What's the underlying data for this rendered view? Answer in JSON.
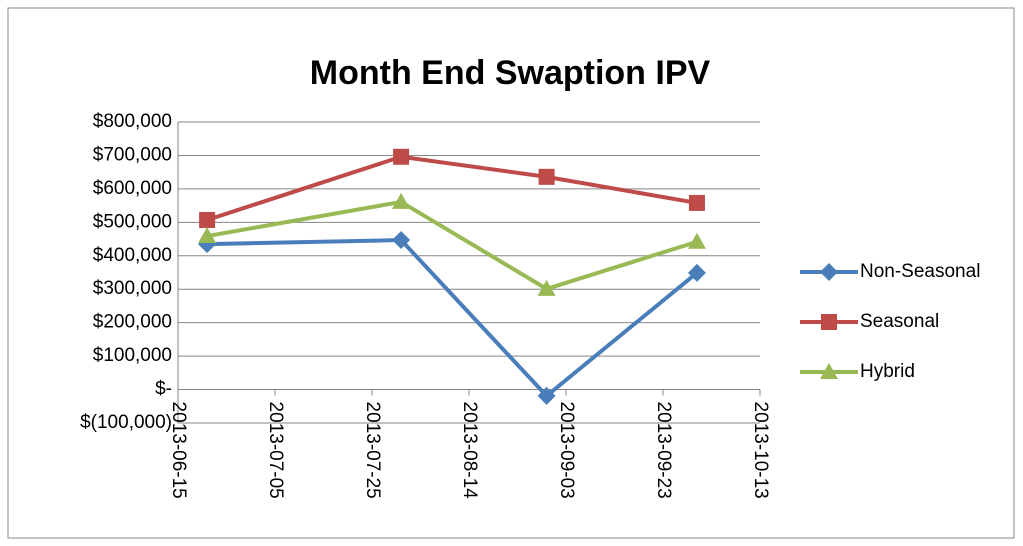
{
  "chart_data": {
    "type": "line",
    "title": "Month End Swaption IPV",
    "x": [
      "2013-06-21",
      "2013-07-31",
      "2013-08-30",
      "2013-09-30"
    ],
    "series": [
      {
        "name": "Non-Seasonal",
        "color": "#4a7ebb",
        "marker": "diamond",
        "values": [
          435000,
          447000,
          -19000,
          349000
        ]
      },
      {
        "name": "Seasonal",
        "color": "#be4b48",
        "marker": "square",
        "values": [
          507000,
          696000,
          636000,
          558000
        ]
      },
      {
        "name": "Hybrid",
        "color": "#98b954",
        "marker": "triangle",
        "values": [
          459000,
          561000,
          301000,
          442000
        ]
      }
    ],
    "xlim": [
      "2013-06-15",
      "2013-10-13"
    ],
    "xticks": [
      "2013-06-15",
      "2013-07-05",
      "2013-07-25",
      "2013-08-14",
      "2013-09-03",
      "2013-09-23",
      "2013-10-13"
    ],
    "ylim": [
      -100000,
      800000
    ],
    "yticks": [
      {
        "value": -100000,
        "label": "$(100,000)"
      },
      {
        "value": 0,
        "label": "$-"
      },
      {
        "value": 100000,
        "label": "$100,000"
      },
      {
        "value": 200000,
        "label": "$200,000"
      },
      {
        "value": 300000,
        "label": "$300,000"
      },
      {
        "value": 400000,
        "label": "$400,000"
      },
      {
        "value": 500000,
        "label": "$500,000"
      },
      {
        "value": 600000,
        "label": "$600,000"
      },
      {
        "value": 700000,
        "label": "$700,000"
      },
      {
        "value": 800000,
        "label": "$800,000"
      }
    ],
    "grid": true,
    "legend": "right"
  }
}
